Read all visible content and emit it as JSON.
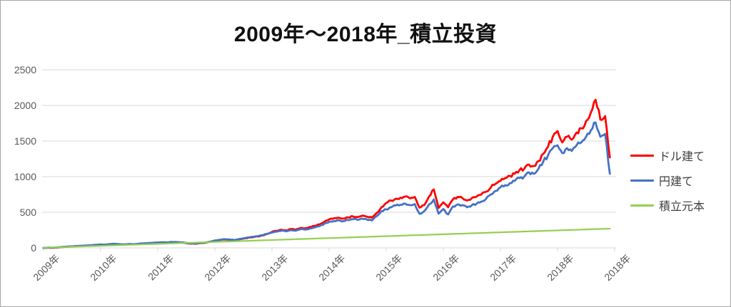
{
  "title": "2009年～2018年_積立投資",
  "legend": [
    {
      "key": "usd",
      "label": "ドル建て",
      "color": "#ff0000"
    },
    {
      "key": "jpy",
      "label": "円建て",
      "color": "#4472c4"
    },
    {
      "key": "principal",
      "label": "積立元本",
      "color": "#92d050"
    }
  ],
  "colors": {
    "red_series": "#ff0000",
    "blue_series": "#4472c4",
    "green_series": "#92d050",
    "gridline": "#d9d9d9",
    "tick_text": "#595959",
    "legend_text": "#404040",
    "title_text": "#111111",
    "chart_border": "#a6a6a6",
    "background": "#ffffff"
  },
  "chart_data": {
    "type": "line",
    "title": "2009年～2018年_積立投資",
    "xlabel": "",
    "ylabel": "",
    "ylim": [
      0,
      2500
    ],
    "y_ticks": [
      0,
      500,
      1000,
      1500,
      2000,
      2500
    ],
    "x_tick_labels": [
      "2009年",
      "2010年",
      "2011年",
      "2012年",
      "2013年",
      "2014年",
      "2015年",
      "2016年",
      "2017年",
      "2018年",
      "2018年"
    ],
    "grid": true,
    "legend_position": "right",
    "x_resolution": "monthly 2009-2018",
    "series": [
      {
        "key": "usd",
        "name": "ドル建て",
        "color": "#ff0000",
        "values": [
          0,
          2,
          1,
          6,
          12,
          16,
          20,
          24,
          28,
          31,
          34,
          40,
          45,
          43,
          50,
          54,
          48,
          45,
          52,
          49,
          56,
          61,
          64,
          68,
          72,
          76,
          74,
          80,
          78,
          74,
          66,
          60,
          58,
          68,
          72,
          84,
          100,
          110,
          118,
          114,
          108,
          118,
          130,
          142,
          152,
          160,
          175,
          195,
          225,
          240,
          255,
          245,
          265,
          255,
          280,
          275,
          295,
          310,
          330,
          365,
          400,
          415,
          425,
          412,
          428,
          442,
          432,
          452,
          438,
          425,
          490,
          570,
          630,
          665,
          690,
          705,
          720,
          695,
          715,
          565,
          600,
          720,
          820,
          560,
          640,
          570,
          680,
          715,
          700,
          665,
          700,
          720,
          750,
          790,
          850,
          900,
          940,
          980,
          1010,
          1040,
          1090,
          1110,
          1170,
          1150,
          1220,
          1320,
          1420,
          1560,
          1640,
          1480,
          1560,
          1520,
          1620,
          1680,
          1780,
          1900,
          2080,
          1800,
          1850,
          1270
        ]
      },
      {
        "key": "jpy",
        "name": "円建て",
        "color": "#4472c4",
        "values": [
          0,
          3,
          2,
          8,
          14,
          18,
          22,
          26,
          30,
          33,
          37,
          43,
          48,
          46,
          53,
          57,
          51,
          48,
          55,
          52,
          59,
          64,
          67,
          71,
          75,
          79,
          77,
          83,
          81,
          77,
          69,
          63,
          61,
          71,
          75,
          88,
          104,
          114,
          122,
          118,
          112,
          122,
          134,
          146,
          156,
          164,
          178,
          198,
          215,
          228,
          242,
          232,
          250,
          240,
          262,
          256,
          274,
          288,
          305,
          338,
          365,
          378,
          388,
          375,
          390,
          402,
          392,
          410,
          396,
          385,
          445,
          515,
          540,
          570,
          595,
          605,
          620,
          600,
          615,
          480,
          515,
          610,
          680,
          480,
          545,
          470,
          580,
          610,
          600,
          570,
          600,
          620,
          650,
          690,
          750,
          800,
          850,
          880,
          910,
          940,
          980,
          1000,
          1060,
          1040,
          1110,
          1210,
          1300,
          1400,
          1440,
          1330,
          1400,
          1360,
          1440,
          1480,
          1560,
          1650,
          1760,
          1560,
          1600,
          1040
        ]
      },
      {
        "key": "principal",
        "name": "積立元本",
        "color": "#92d050",
        "values": [
          2,
          4,
          7,
          9,
          11,
          14,
          16,
          18,
          20,
          23,
          25,
          27,
          29,
          32,
          34,
          36,
          38,
          41,
          43,
          45,
          47,
          50,
          52,
          54,
          56,
          59,
          61,
          63,
          65,
          68,
          70,
          72,
          74,
          77,
          79,
          81,
          83,
          86,
          88,
          90,
          92,
          95,
          97,
          99,
          101,
          104,
          106,
          108,
          110,
          113,
          115,
          117,
          119,
          122,
          124,
          126,
          128,
          131,
          133,
          135,
          137,
          140,
          142,
          144,
          146,
          149,
          151,
          153,
          155,
          158,
          160,
          162,
          164,
          167,
          169,
          171,
          173,
          176,
          178,
          180,
          182,
          185,
          187,
          189,
          191,
          194,
          196,
          198,
          200,
          203,
          205,
          207,
          209,
          212,
          214,
          216,
          218,
          221,
          223,
          225,
          227,
          230,
          232,
          234,
          236,
          239,
          241,
          243,
          245,
          248,
          250,
          252,
          254,
          257,
          259,
          261,
          263,
          266,
          268,
          270
        ]
      }
    ]
  }
}
